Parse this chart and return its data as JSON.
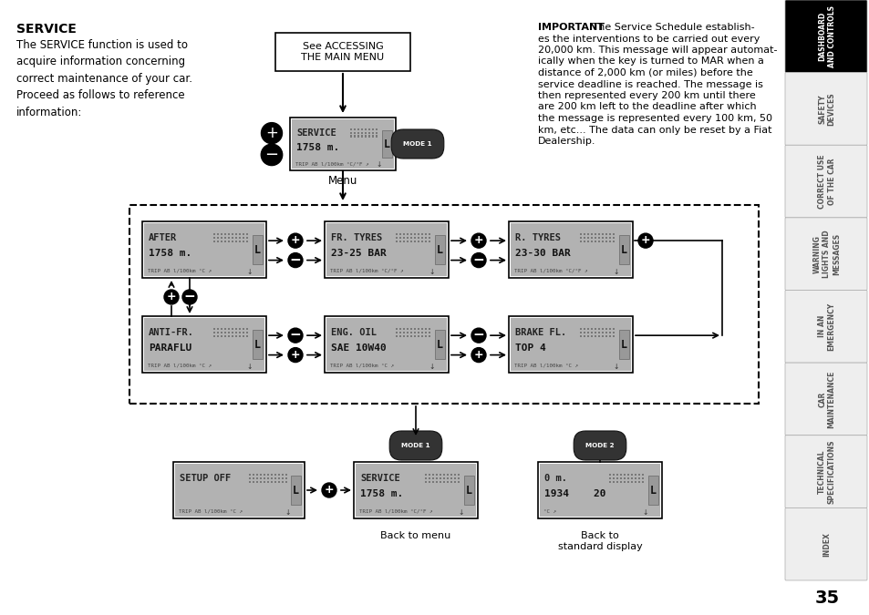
{
  "title": "SERVICE",
  "page_number": "35",
  "bg_color": "#ffffff",
  "sidebar_bg": "#eeeeee",
  "sidebar_active_bg": "#000000",
  "sidebar_active_text": "#ffffff",
  "sidebar_text": "#555555",
  "sidebar_items": [
    {
      "label": "DASHBOARD\nAND CONTROLS",
      "active": true
    },
    {
      "label": "SAFETY\nDEVICES",
      "active": false
    },
    {
      "label": "CORRECT USE\nOF THE CAR",
      "active": false
    },
    {
      "label": "WARNING\nLIGHTS AND\nMESSAGES",
      "active": false
    },
    {
      "label": "IN AN\nEMERGENCY",
      "active": false
    },
    {
      "label": "CAR\nMAINTENANCE",
      "active": false
    },
    {
      "label": "TECHNICAL\nSPECIFICATIONS",
      "active": false
    },
    {
      "label": "INDEX",
      "active": false
    }
  ],
  "left_text_title": "SERVICE",
  "left_text_body": "The SERVICE function is used to\nacquire information concerning\ncorrect maintenance of your car.\nProceed as follows to reference\ninformation:",
  "right_lines": [
    [
      "IMPORTANT",
      " The Service Schedule establish-"
    ],
    [
      "",
      "es the interventions to be carried out every"
    ],
    [
      "",
      "20,000 km. This message will appear automat-"
    ],
    [
      "",
      "ically when the key is turned to MAR when a"
    ],
    [
      "",
      "distance of 2,000 km (or miles) before the"
    ],
    [
      "",
      "service deadline is reached. The message is"
    ],
    [
      "",
      "then represented every 200 km until there"
    ],
    [
      "",
      "are 200 km left to the deadline after which"
    ],
    [
      "",
      "the message is represented every 100 km, 50"
    ],
    [
      "",
      "km, etc... The data can only be reset by a Fiat"
    ],
    [
      "",
      "Dealership."
    ]
  ],
  "top_box_text": "See ACCESSING\nTHE MAIN MENU",
  "menu_label": "Menu",
  "mode1_label": "MODE 1",
  "mode2_label": "MODE 2",
  "back_to_menu": "Back to menu",
  "back_to_std": "Back to\nstandard display",
  "displays": {
    "menu_main": {
      "line1": "SERVICE",
      "line2": "1758 m.",
      "sub": "TRIP AB l/100km °C/°F ↗"
    },
    "after": {
      "line1": "AFTER",
      "line2": "1758 m.",
      "sub": "TRIP AB l/100km °C ↗"
    },
    "fr_tyres": {
      "line1": "FR. TYRES",
      "line2": "23-25 BAR",
      "sub": "TRIP AB l/100km °C/°F ↗"
    },
    "r_tyres": {
      "line1": "R. TYRES",
      "line2": "23-30 BAR",
      "sub": "TRIP AB l/100km °C/°F ↗"
    },
    "anti_fr": {
      "line1": "ANTI-FR.",
      "line2": "PARAFLU",
      "sub": "TRIP AB l/100km °C ↗"
    },
    "eng_oil": {
      "line1": "ENG. OIL",
      "line2": "SAE 10W40",
      "sub": "TRIP AB l/100km °C ↗"
    },
    "brake_fl": {
      "line1": "BRAKE FL.",
      "line2": "TOP 4",
      "sub": "TRIP AB l/100km °C ↗"
    },
    "setup_off": {
      "line1": "SETUP OFF",
      "line2": "",
      "sub": "TRIP AB l/100km °C ↗"
    },
    "service2": {
      "line1": "SERVICE",
      "line2": "1758 m.",
      "sub": "TRIP AB l/100km °C/°F ↗"
    },
    "standard": {
      "line1": "0 m.",
      "line2": "1934    20",
      "sub": "°C ↗"
    }
  }
}
